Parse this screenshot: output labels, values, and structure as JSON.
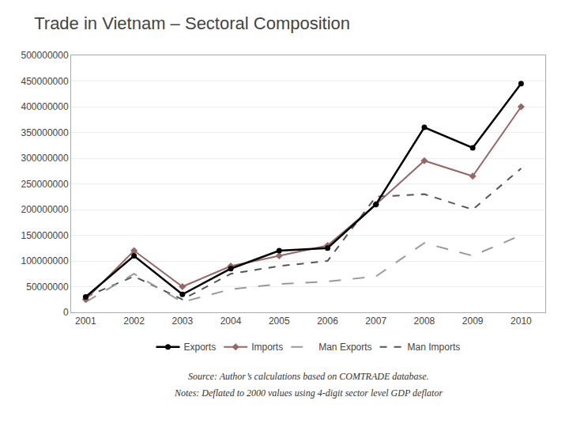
{
  "chart_data": {
    "type": "line",
    "title": "Trade in Vietnam – Sectoral Composition",
    "annotations": [
      "Source: Author’s calculations based on COMTRADE database.",
      "Notes: Deflated to 2000 values using 4-digit sector level GDP deflator"
    ],
    "x": [
      2001,
      2002,
      2003,
      2004,
      2005,
      2006,
      2007,
      2008,
      2009,
      2010
    ],
    "series": [
      {
        "name": "Exports",
        "color": "#000000",
        "marker": "circle",
        "line_style": "solid",
        "values": [
          30000000,
          110000000,
          35000000,
          85000000,
          120000000,
          125000000,
          210000000,
          360000000,
          320000000,
          445000000
        ]
      },
      {
        "name": "Imports",
        "color": "#996666",
        "marker": "diamond",
        "line_style": "solid",
        "values": [
          25000000,
          120000000,
          50000000,
          90000000,
          110000000,
          130000000,
          210000000,
          295000000,
          265000000,
          400000000
        ]
      },
      {
        "name": "Man Exports",
        "color": "#999999",
        "line_style": "longdash",
        "values": [
          20000000,
          75000000,
          20000000,
          45000000,
          55000000,
          60000000,
          70000000,
          135000000,
          110000000,
          150000000
        ]
      },
      {
        "name": "Man Imports",
        "color": "#555555",
        "line_style": "dash",
        "values": [
          30000000,
          70000000,
          25000000,
          75000000,
          90000000,
          100000000,
          225000000,
          230000000,
          200000000,
          280000000
        ]
      }
    ],
    "xlim": [
      2000.7,
      2010.5
    ],
    "xticks": [
      2001,
      2002,
      2003,
      2004,
      2005,
      2006,
      2007,
      2008,
      2009,
      2010
    ],
    "ylim": [
      0,
      500000000
    ],
    "yticks": [
      0,
      50000000,
      100000000,
      150000000,
      200000000,
      250000000,
      300000000,
      350000000,
      400000000,
      450000000,
      500000000
    ],
    "grid": true,
    "legend": "bottom"
  }
}
